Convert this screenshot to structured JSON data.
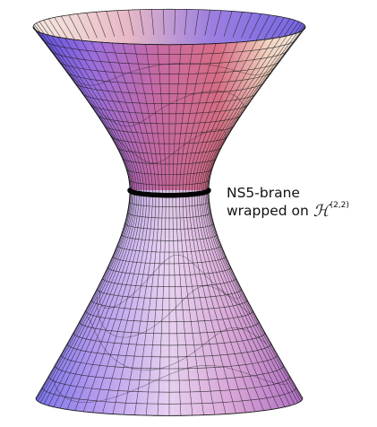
{
  "annotation": {
    "line1": "NS5-brane",
    "line2_prefix": "wrapped on ",
    "symbol": "ℋ",
    "superscript": "(2,2)"
  },
  "colors": {
    "surface_blue": "#6f63e6",
    "surface_pink": "#c85a8e",
    "surface_cream": "#f6ece2",
    "mesh_line": "#1a1a1a",
    "band": "#050505"
  },
  "surface": {
    "shape": "hyperboloid-of-one-sheet",
    "mesh_columns": 36,
    "mesh_rows": 34
  }
}
